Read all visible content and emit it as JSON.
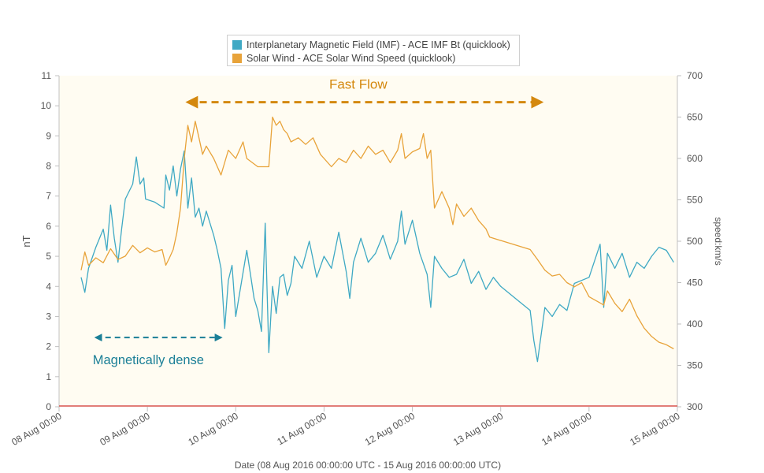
{
  "chart_data": {
    "type": "line",
    "xlabel": "Date (08 Aug 2016 00:00:00 UTC - 15 Aug 2016 00:00:00 UTC)",
    "x_range": [
      "08 Aug 2016 00:00:00 UTC",
      "15 Aug 2016 00:00:00 UTC"
    ],
    "x_tick_labels": [
      "08 Aug 00:00",
      "09 Aug 00:00",
      "10 Aug 00:00",
      "11 Aug 00:00",
      "12 Aug 00:00",
      "13 Aug 00:00",
      "14 Aug 00:00",
      "15 Aug 00:00"
    ],
    "y_left": {
      "label": "nT",
      "min": 0,
      "max": 11,
      "ticks": [
        0,
        1,
        2,
        3,
        4,
        5,
        6,
        7,
        8,
        9,
        10,
        11
      ]
    },
    "y_right": {
      "label": "speed:km/s",
      "min": 300,
      "max": 700,
      "ticks": [
        300,
        350,
        400,
        450,
        500,
        550,
        600,
        650,
        700
      ]
    },
    "legend_position": "top-center",
    "grid": false,
    "background_color": "#fffcf2",
    "series": [
      {
        "name": "Interplanetary Magnetic Field (IMF) - ACE IMF Bt (quicklook)",
        "axis": "left",
        "color": "#3fa9c4",
        "points": [
          [
            "2016-08-08 06:00",
            4.3
          ],
          [
            "2016-08-08 07:00",
            3.8
          ],
          [
            "2016-08-08 08:00",
            4.6
          ],
          [
            "2016-08-08 10:00",
            5.3
          ],
          [
            "2016-08-08 12:00",
            5.9
          ],
          [
            "2016-08-08 13:00",
            5.2
          ],
          [
            "2016-08-08 14:00",
            6.7
          ],
          [
            "2016-08-08 15:00",
            5.6
          ],
          [
            "2016-08-08 16:00",
            4.8
          ],
          [
            "2016-08-08 17:00",
            5.9
          ],
          [
            "2016-08-08 18:00",
            6.9
          ],
          [
            "2016-08-08 20:00",
            7.4
          ],
          [
            "2016-08-08 21:00",
            8.3
          ],
          [
            "2016-08-08 22:00",
            7.4
          ],
          [
            "2016-08-08 23:00",
            7.6
          ],
          [
            "2016-08-08 23:30",
            6.9
          ],
          [
            "2016-08-09 02:00",
            6.8
          ],
          [
            "2016-08-09 04:30",
            6.6
          ],
          [
            "2016-08-09 05:00",
            7.7
          ],
          [
            "2016-08-09 06:00",
            7.2
          ],
          [
            "2016-08-09 07:00",
            8.0
          ],
          [
            "2016-08-09 08:00",
            7.0
          ],
          [
            "2016-08-09 09:00",
            7.9
          ],
          [
            "2016-08-09 10:00",
            8.5
          ],
          [
            "2016-08-09 11:00",
            6.6
          ],
          [
            "2016-08-09 12:00",
            7.6
          ],
          [
            "2016-08-09 13:00",
            6.3
          ],
          [
            "2016-08-09 14:00",
            6.6
          ],
          [
            "2016-08-09 15:00",
            6.0
          ],
          [
            "2016-08-09 16:00",
            6.5
          ],
          [
            "2016-08-09 18:00",
            5.7
          ],
          [
            "2016-08-09 19:00",
            5.2
          ],
          [
            "2016-08-09 20:00",
            4.6
          ],
          [
            "2016-08-09 21:00",
            2.6
          ],
          [
            "2016-08-09 22:00",
            4.2
          ],
          [
            "2016-08-09 23:00",
            4.7
          ],
          [
            "2016-08-10 00:00",
            3.0
          ],
          [
            "2016-08-10 03:00",
            5.2
          ],
          [
            "2016-08-10 04:00",
            4.4
          ],
          [
            "2016-08-10 05:00",
            3.6
          ],
          [
            "2016-08-10 06:00",
            3.2
          ],
          [
            "2016-08-10 07:00",
            2.5
          ],
          [
            "2016-08-10 08:00",
            6.1
          ],
          [
            "2016-08-10 09:00",
            1.8
          ],
          [
            "2016-08-10 10:00",
            4.0
          ],
          [
            "2016-08-10 11:00",
            3.1
          ],
          [
            "2016-08-10 12:00",
            4.3
          ],
          [
            "2016-08-10 13:00",
            4.4
          ],
          [
            "2016-08-10 14:00",
            3.7
          ],
          [
            "2016-08-10 15:00",
            4.1
          ],
          [
            "2016-08-10 16:00",
            5.0
          ],
          [
            "2016-08-10 18:00",
            4.6
          ],
          [
            "2016-08-10 20:00",
            5.5
          ],
          [
            "2016-08-10 22:00",
            4.3
          ],
          [
            "2016-08-11 00:00",
            5.0
          ],
          [
            "2016-08-11 02:00",
            4.6
          ],
          [
            "2016-08-11 04:00",
            5.8
          ],
          [
            "2016-08-11 06:00",
            4.5
          ],
          [
            "2016-08-11 07:00",
            3.6
          ],
          [
            "2016-08-11 08:00",
            4.8
          ],
          [
            "2016-08-11 10:00",
            5.6
          ],
          [
            "2016-08-11 12:00",
            4.8
          ],
          [
            "2016-08-11 14:00",
            5.1
          ],
          [
            "2016-08-11 16:00",
            5.7
          ],
          [
            "2016-08-11 18:00",
            4.9
          ],
          [
            "2016-08-11 20:00",
            5.5
          ],
          [
            "2016-08-11 21:00",
            6.5
          ],
          [
            "2016-08-11 22:00",
            5.4
          ],
          [
            "2016-08-12 00:00",
            6.2
          ],
          [
            "2016-08-12 02:00",
            5.1
          ],
          [
            "2016-08-12 04:00",
            4.4
          ],
          [
            "2016-08-12 05:00",
            3.3
          ],
          [
            "2016-08-12 06:00",
            5.0
          ],
          [
            "2016-08-12 08:00",
            4.6
          ],
          [
            "2016-08-12 10:00",
            4.3
          ],
          [
            "2016-08-12 12:00",
            4.4
          ],
          [
            "2016-08-12 14:00",
            4.9
          ],
          [
            "2016-08-12 16:00",
            4.1
          ],
          [
            "2016-08-12 18:00",
            4.5
          ],
          [
            "2016-08-12 20:00",
            3.9
          ],
          [
            "2016-08-12 22:00",
            4.3
          ],
          [
            "2016-08-13 00:00",
            4.0
          ],
          [
            "2016-08-13 08:00",
            3.2
          ],
          [
            "2016-08-13 09:00",
            2.2
          ],
          [
            "2016-08-13 10:00",
            1.5
          ],
          [
            "2016-08-13 12:00",
            3.3
          ],
          [
            "2016-08-13 14:00",
            3.0
          ],
          [
            "2016-08-13 16:00",
            3.4
          ],
          [
            "2016-08-13 18:00",
            3.2
          ],
          [
            "2016-08-13 20:00",
            4.1
          ],
          [
            "2016-08-14 00:00",
            4.3
          ],
          [
            "2016-08-14 03:00",
            5.4
          ],
          [
            "2016-08-14 04:00",
            3.3
          ],
          [
            "2016-08-14 05:00",
            5.1
          ],
          [
            "2016-08-14 07:00",
            4.6
          ],
          [
            "2016-08-14 09:00",
            5.1
          ],
          [
            "2016-08-14 11:00",
            4.3
          ],
          [
            "2016-08-14 13:00",
            4.8
          ],
          [
            "2016-08-14 15:00",
            4.6
          ],
          [
            "2016-08-14 17:00",
            5.0
          ],
          [
            "2016-08-14 19:00",
            5.3
          ],
          [
            "2016-08-14 21:00",
            5.2
          ],
          [
            "2016-08-14 23:00",
            4.8
          ]
        ]
      },
      {
        "name": "Solar Wind - ACE Solar Wind Speed (quicklook)",
        "axis": "right",
        "color": "#e8a33a",
        "points": [
          [
            "2016-08-08 06:00",
            465
          ],
          [
            "2016-08-08 07:00",
            487
          ],
          [
            "2016-08-08 08:00",
            471
          ],
          [
            "2016-08-08 10:00",
            480
          ],
          [
            "2016-08-08 12:00",
            474
          ],
          [
            "2016-08-08 14:00",
            491
          ],
          [
            "2016-08-08 16:00",
            478
          ],
          [
            "2016-08-08 18:00",
            482
          ],
          [
            "2016-08-08 20:00",
            495
          ],
          [
            "2016-08-08 22:00",
            486
          ],
          [
            "2016-08-09 00:00",
            492
          ],
          [
            "2016-08-09 02:00",
            487
          ],
          [
            "2016-08-09 04:00",
            490
          ],
          [
            "2016-08-09 05:00",
            471
          ],
          [
            "2016-08-09 06:00",
            480
          ],
          [
            "2016-08-09 07:00",
            490
          ],
          [
            "2016-08-09 08:00",
            510
          ],
          [
            "2016-08-09 09:00",
            540
          ],
          [
            "2016-08-09 10:00",
            600
          ],
          [
            "2016-08-09 11:00",
            640
          ],
          [
            "2016-08-09 12:00",
            620
          ],
          [
            "2016-08-09 13:00",
            645
          ],
          [
            "2016-08-09 14:00",
            625
          ],
          [
            "2016-08-09 15:00",
            605
          ],
          [
            "2016-08-09 16:00",
            615
          ],
          [
            "2016-08-09 18:00",
            600
          ],
          [
            "2016-08-09 20:00",
            580
          ],
          [
            "2016-08-09 22:00",
            610
          ],
          [
            "2016-08-10 00:00",
            600
          ],
          [
            "2016-08-10 02:00",
            620
          ],
          [
            "2016-08-10 03:00",
            600
          ],
          [
            "2016-08-10 06:00",
            590
          ],
          [
            "2016-08-10 09:00",
            590
          ],
          [
            "2016-08-10 10:00",
            650
          ],
          [
            "2016-08-10 11:00",
            640
          ],
          [
            "2016-08-10 12:00",
            645
          ],
          [
            "2016-08-10 13:00",
            635
          ],
          [
            "2016-08-10 14:00",
            630
          ],
          [
            "2016-08-10 15:00",
            620
          ],
          [
            "2016-08-10 17:00",
            625
          ],
          [
            "2016-08-10 19:00",
            617
          ],
          [
            "2016-08-10 21:00",
            625
          ],
          [
            "2016-08-10 23:00",
            605
          ],
          [
            "2016-08-11 02:00",
            590
          ],
          [
            "2016-08-11 04:00",
            600
          ],
          [
            "2016-08-11 06:00",
            595
          ],
          [
            "2016-08-11 08:00",
            610
          ],
          [
            "2016-08-11 10:00",
            600
          ],
          [
            "2016-08-11 12:00",
            615
          ],
          [
            "2016-08-11 14:00",
            605
          ],
          [
            "2016-08-11 16:00",
            610
          ],
          [
            "2016-08-11 18:00",
            595
          ],
          [
            "2016-08-11 20:00",
            610
          ],
          [
            "2016-08-11 21:00",
            630
          ],
          [
            "2016-08-11 22:00",
            600
          ],
          [
            "2016-08-12 00:00",
            608
          ],
          [
            "2016-08-12 02:00",
            612
          ],
          [
            "2016-08-12 03:00",
            630
          ],
          [
            "2016-08-12 04:00",
            600
          ],
          [
            "2016-08-12 05:00",
            610
          ],
          [
            "2016-08-12 06:00",
            540
          ],
          [
            "2016-08-12 08:00",
            560
          ],
          [
            "2016-08-12 10:00",
            540
          ],
          [
            "2016-08-12 11:00",
            520
          ],
          [
            "2016-08-12 12:00",
            545
          ],
          [
            "2016-08-12 14:00",
            530
          ],
          [
            "2016-08-12 16:00",
            540
          ],
          [
            "2016-08-12 18:00",
            525
          ],
          [
            "2016-08-12 20:00",
            515
          ],
          [
            "2016-08-12 21:00",
            505
          ],
          [
            "2016-08-13 08:00",
            490
          ],
          [
            "2016-08-13 10:00",
            478
          ],
          [
            "2016-08-13 12:00",
            465
          ],
          [
            "2016-08-13 14:00",
            458
          ],
          [
            "2016-08-13 16:00",
            460
          ],
          [
            "2016-08-13 18:00",
            450
          ],
          [
            "2016-08-13 20:00",
            445
          ],
          [
            "2016-08-13 22:00",
            450
          ],
          [
            "2016-08-14 00:00",
            433
          ],
          [
            "2016-08-14 04:00",
            423
          ],
          [
            "2016-08-14 05:00",
            440
          ],
          [
            "2016-08-14 07:00",
            425
          ],
          [
            "2016-08-14 09:00",
            415
          ],
          [
            "2016-08-14 11:00",
            430
          ],
          [
            "2016-08-14 13:00",
            410
          ],
          [
            "2016-08-14 15:00",
            395
          ],
          [
            "2016-08-14 17:00",
            385
          ],
          [
            "2016-08-14 19:00",
            378
          ],
          [
            "2016-08-14 21:00",
            375
          ],
          [
            "2016-08-14 23:00",
            370
          ]
        ]
      }
    ],
    "annotations": [
      {
        "text": "Fast Flow",
        "color": "#d4880e",
        "span": [
          "2016-08-09 11:00",
          "2016-08-13 11:00"
        ],
        "level_right_axis": 668
      },
      {
        "text": "Magnetically dense",
        "color": "#1b7f97",
        "span": [
          "2016-08-08 10:00",
          "2016-08-09 20:00"
        ],
        "level_left_axis": 2.3
      }
    ]
  }
}
